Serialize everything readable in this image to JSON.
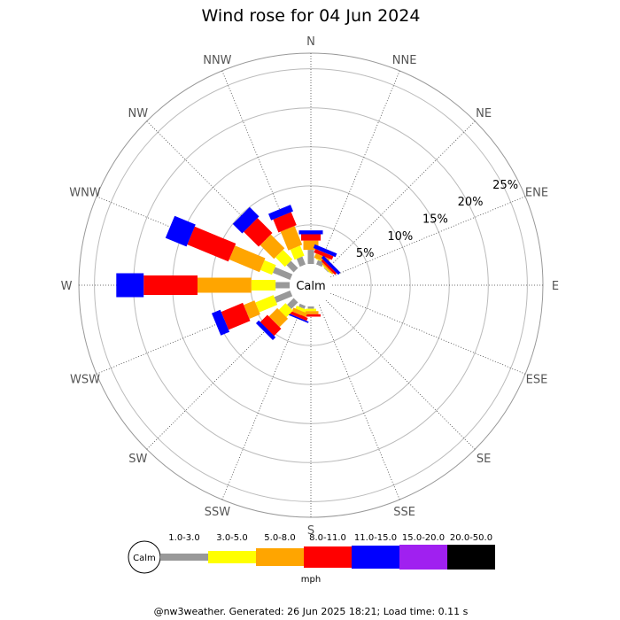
{
  "chart_data": {
    "type": "wind-rose",
    "title": "Wind rose for 04 Jun 2024",
    "directions": [
      "N",
      "NNE",
      "NE",
      "ENE",
      "E",
      "ESE",
      "SE",
      "SSE",
      "S",
      "SSW",
      "SW",
      "WSW",
      "W",
      "WNW",
      "NW",
      "NNW"
    ],
    "ring_labels": [
      "5%",
      "10%",
      "15%",
      "20%",
      "25%"
    ],
    "ring_values": [
      5,
      10,
      15,
      20,
      25
    ],
    "rmax": 27,
    "calm_label": "Calm",
    "units": "mph",
    "speed_bins": [
      {
        "label": "1.0-3.0",
        "color": "#999999"
      },
      {
        "label": "3.0-5.0",
        "color": "#ffff00"
      },
      {
        "label": "5.0-8.0",
        "color": "#ffa500"
      },
      {
        "label": "8.0-11.0",
        "color": "#ff0000"
      },
      {
        "label": "11.0-15.0",
        "color": "#0000ff"
      },
      {
        "label": "15.0-20.0",
        "color": "#a020f0"
      },
      {
        "label": "20.0-50.0",
        "color": "#000000"
      }
    ],
    "series": [
      {
        "direction": "N",
        "values": [
          1.8,
          0.0,
          1.2,
          0.8,
          0.5,
          0,
          0
        ]
      },
      {
        "direction": "NNE",
        "values": [
          0.6,
          0.1,
          0.6,
          0.5,
          0.5,
          0,
          0
        ]
      },
      {
        "direction": "NE",
        "values": [
          0.1,
          0.1,
          0.2,
          0.3,
          0.4,
          0,
          0
        ]
      },
      {
        "direction": "ENE",
        "values": [
          0,
          0,
          0,
          0,
          0,
          0,
          0
        ]
      },
      {
        "direction": "E",
        "values": [
          0,
          0,
          0,
          0,
          0,
          0,
          0
        ]
      },
      {
        "direction": "ESE",
        "values": [
          0,
          0,
          0,
          0,
          0,
          0,
          0
        ]
      },
      {
        "direction": "SE",
        "values": [
          0,
          0,
          0,
          0,
          0,
          0,
          0
        ]
      },
      {
        "direction": "SSE",
        "values": [
          0,
          0,
          0,
          0,
          0,
          0,
          0
        ]
      },
      {
        "direction": "S",
        "values": [
          0.3,
          0.3,
          0.4,
          0.3,
          0,
          0,
          0
        ]
      },
      {
        "direction": "SSW",
        "values": [
          0.4,
          0.4,
          0.5,
          0.4,
          0.2,
          0,
          0
        ]
      },
      {
        "direction": "SW",
        "values": [
          1.2,
          1.2,
          1.5,
          1.3,
          0.5,
          0,
          0
        ]
      },
      {
        "direction": "WSW",
        "values": [
          2.2,
          2.5,
          1.5,
          3.0,
          1.2,
          0,
          0
        ]
      },
      {
        "direction": "W",
        "values": [
          1.8,
          3.1,
          6.9,
          6.9,
          3.5,
          0,
          0
        ]
      },
      {
        "direction": "WNW",
        "values": [
          2.4,
          1.6,
          4.2,
          5.7,
          2.9,
          0,
          0
        ]
      },
      {
        "direction": "NW",
        "values": [
          1.3,
          1.7,
          2.5,
          2.7,
          1.7,
          0,
          0
        ]
      },
      {
        "direction": "NNW",
        "values": [
          1.1,
          1.4,
          2.6,
          1.8,
          0.9,
          0,
          0
        ]
      }
    ]
  },
  "footer": {
    "text": "@nw3weather. Generated: 26 Jun 2025 18:21; Load time: 0.11 s"
  }
}
